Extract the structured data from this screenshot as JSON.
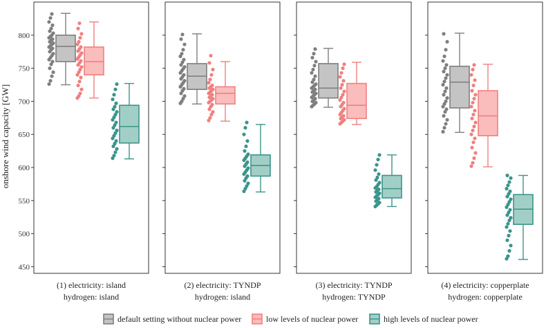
{
  "chart_data": {
    "type": "box",
    "ylabel": "onshore wind capacity [GW]",
    "ylim": [
      440,
      850
    ],
    "yticks": [
      450,
      500,
      550,
      600,
      650,
      700,
      750,
      800
    ],
    "grid": false,
    "legend_position": "bottom",
    "facets": [
      {
        "label_line1": "(1) electricity: island",
        "label_line2": "hydrogen: island"
      },
      {
        "label_line1": "(2) electricity: TYNDP",
        "label_line2": "hydrogen: island"
      },
      {
        "label_line1": "(3) electricity: TYNDP",
        "label_line2": "hydrogen: TYNDP"
      },
      {
        "label_line1": "(4) electricity: copperplate",
        "label_line2": "hydrogen: copperplate"
      }
    ],
    "series": [
      {
        "name": "default setting without nuclear power",
        "color": "#7f7f7f",
        "fill": "#c4c4c4",
        "boxes": [
          {
            "whisker_low": 725,
            "q1": 760,
            "median": 783,
            "q3": 800,
            "whisker_high": 833
          },
          {
            "whisker_low": 696,
            "q1": 718,
            "median": 738,
            "q3": 757,
            "whisker_high": 802
          },
          {
            "whisker_low": 691,
            "q1": 705,
            "median": 720,
            "q3": 757,
            "whisker_high": 780
          },
          {
            "whisker_low": 653,
            "q1": 690,
            "median": 729,
            "q3": 753,
            "whisker_high": 803
          }
        ],
        "points": [
          [
            726,
            731,
            738,
            744,
            750,
            756,
            760,
            763,
            766,
            769,
            772,
            775,
            778,
            780,
            782,
            784,
            786,
            788,
            790,
            792,
            794,
            796,
            798,
            800,
            803,
            806,
            810,
            815,
            820,
            826,
            832
          ],
          [
            697,
            700,
            704,
            708,
            712,
            716,
            719,
            722,
            725,
            728,
            731,
            734,
            737,
            740,
            743,
            746,
            749,
            752,
            755,
            759,
            763,
            768,
            772,
            778,
            786,
            794,
            801
          ],
          [
            692,
            694,
            696,
            698,
            700,
            702,
            704,
            706,
            708,
            710,
            712,
            714,
            716,
            718,
            720,
            722,
            724,
            726,
            729,
            733,
            738,
            743,
            748,
            754,
            760,
            766,
            772,
            779
          ],
          [
            654,
            660,
            666,
            672,
            678,
            684,
            688,
            692,
            696,
            700,
            705,
            710,
            715,
            720,
            725,
            730,
            735,
            740,
            745,
            750,
            755,
            761,
            768,
            778,
            790,
            802
          ]
        ]
      },
      {
        "name": "low levels of nuclear power",
        "color": "#f08080",
        "fill": "#fbbcbc",
        "boxes": [
          {
            "whisker_low": 705,
            "q1": 740,
            "median": 760,
            "q3": 782,
            "whisker_high": 820
          },
          {
            "whisker_low": 670,
            "q1": 696,
            "median": 712,
            "q3": 722,
            "whisker_high": 760
          },
          {
            "whisker_low": 665,
            "q1": 674,
            "median": 694,
            "q3": 727,
            "whisker_high": 759
          },
          {
            "whisker_low": 601,
            "q1": 648,
            "median": 678,
            "q3": 716,
            "whisker_high": 756
          }
        ],
        "points": [
          [
            705,
            708,
            712,
            718,
            724,
            730,
            736,
            740,
            744,
            748,
            752,
            755,
            758,
            761,
            764,
            767,
            770,
            773,
            776,
            779,
            782,
            786,
            790,
            796,
            802,
            810,
            818
          ],
          [
            671,
            675,
            680,
            684,
            688,
            692,
            695,
            698,
            700,
            702,
            704,
            706,
            708,
            710,
            712,
            714,
            716,
            718,
            720,
            722,
            724,
            728,
            733,
            740,
            748,
            758,
            769
          ],
          [
            666,
            668,
            670,
            672,
            674,
            676,
            678,
            680,
            683,
            686,
            689,
            692,
            695,
            698,
            702,
            706,
            710,
            715,
            720,
            725,
            731,
            737,
            743,
            750,
            756
          ],
          [
            602,
            607,
            614,
            622,
            630,
            638,
            644,
            650,
            656,
            662,
            668,
            674,
            680,
            686,
            692,
            698,
            704,
            710,
            716,
            724,
            732,
            740,
            748,
            755
          ]
        ]
      },
      {
        "name": "high levels of nuclear power",
        "color": "#3a948a",
        "fill": "#a1cfc8",
        "boxes": [
          {
            "whisker_low": 613,
            "q1": 637,
            "median": 662,
            "q3": 694,
            "whisker_high": 727
          },
          {
            "whisker_low": 563,
            "q1": 587,
            "median": 603,
            "q3": 619,
            "whisker_high": 665
          },
          {
            "whisker_low": 541,
            "q1": 554,
            "median": 568,
            "q3": 588,
            "whisker_high": 619
          },
          {
            "whisker_low": 461,
            "q1": 514,
            "median": 537,
            "q3": 559,
            "whisker_high": 588
          }
        ],
        "points": [
          [
            614,
            618,
            623,
            628,
            632,
            636,
            640,
            644,
            648,
            652,
            656,
            660,
            664,
            668,
            672,
            676,
            680,
            684,
            688,
            692,
            697,
            703,
            710,
            718,
            726
          ],
          [
            564,
            568,
            572,
            576,
            580,
            584,
            587,
            590,
            593,
            596,
            599,
            602,
            605,
            608,
            611,
            614,
            617,
            620,
            625,
            632,
            640,
            650,
            660,
            668
          ],
          [
            541,
            543,
            545,
            547,
            549,
            551,
            553,
            555,
            557,
            559,
            561,
            563,
            565,
            567,
            569,
            571,
            574,
            577,
            581,
            585,
            590,
            596,
            604,
            612,
            619
          ],
          [
            462,
            466,
            474,
            482,
            490,
            497,
            504,
            510,
            515,
            520,
            524,
            528,
            532,
            536,
            540,
            544,
            548,
            552,
            556,
            560,
            564,
            568,
            573,
            578,
            584,
            588
          ]
        ]
      }
    ]
  }
}
